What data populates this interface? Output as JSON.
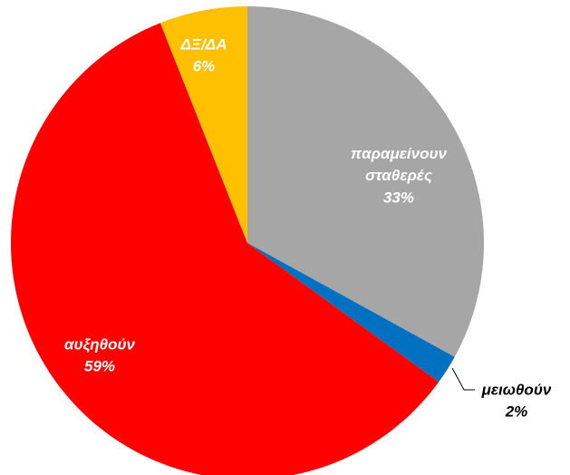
{
  "chart_data": {
    "type": "pie",
    "categories": [
      "παραμείνουν σταθερές",
      "μειωθούν",
      "αυξηθούν",
      "ΔΞ/ΔΑ"
    ],
    "values": [
      33,
      2,
      59,
      6
    ],
    "value_labels": [
      "33%",
      "2%",
      "59%",
      "6%"
    ],
    "colors": [
      "#a6a6a6",
      "#0070c0",
      "#ff0000",
      "#ffc000"
    ]
  }
}
